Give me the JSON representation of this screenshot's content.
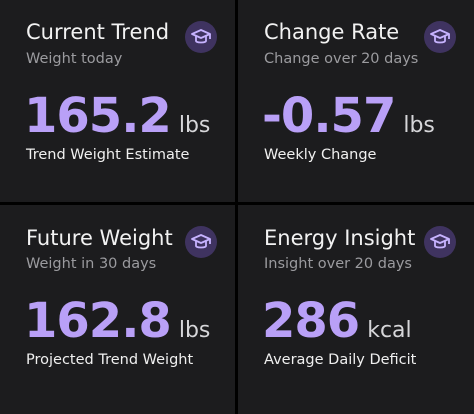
{
  "cards": [
    {
      "title": "Current Trend",
      "subtitle": "Weight today",
      "value": "165.2",
      "unit": "lbs",
      "caption": "Trend Weight Estimate"
    },
    {
      "title": "Change Rate",
      "subtitle": "Change over 20 days",
      "value": "-0.57",
      "unit": "lbs",
      "caption": "Weekly Change"
    },
    {
      "title": "Future Weight",
      "subtitle": "Weight in 30 days",
      "value": "162.8",
      "unit": "lbs",
      "caption": "Projected Trend Weight"
    },
    {
      "title": "Energy Insight",
      "subtitle": "Insight over 20 days",
      "value": "286",
      "unit": "kcal",
      "caption": "Average Daily Deficit"
    }
  ]
}
